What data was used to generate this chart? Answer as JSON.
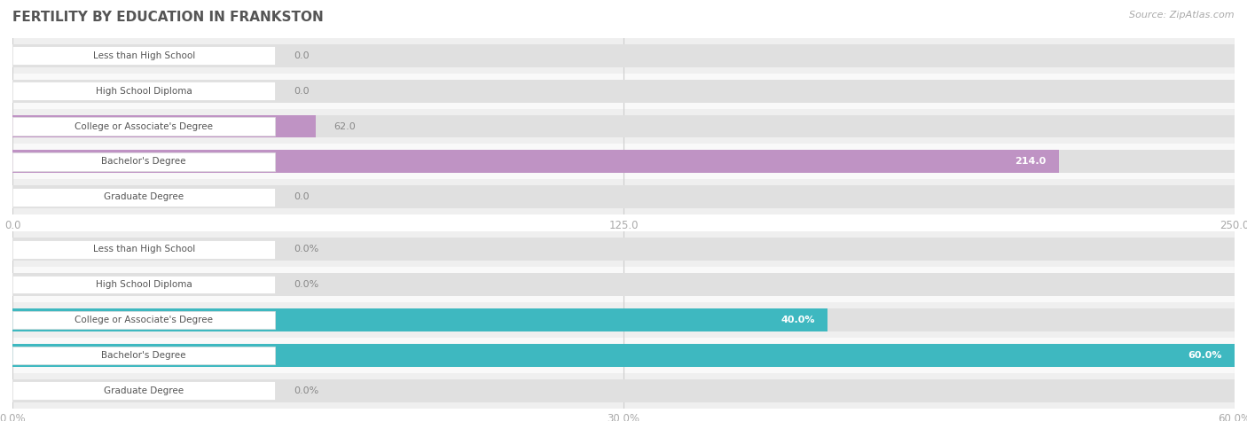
{
  "title": "FERTILITY BY EDUCATION IN FRANKSTON",
  "source": "Source: ZipAtlas.com",
  "top_chart": {
    "categories": [
      "Less than High School",
      "High School Diploma",
      "College or Associate's Degree",
      "Bachelor's Degree",
      "Graduate Degree"
    ],
    "values": [
      0.0,
      0.0,
      62.0,
      214.0,
      0.0
    ],
    "xlim": [
      0,
      250
    ],
    "xticks": [
      0.0,
      125.0,
      250.0
    ],
    "bar_color": "#bf93c4",
    "label_bg_color": "#ffffff",
    "bar_bg_color": "#e0e0e0",
    "value_label_color_inside": "#ffffff",
    "value_label_color_outside": "#888888"
  },
  "bottom_chart": {
    "categories": [
      "Less than High School",
      "High School Diploma",
      "College or Associate's Degree",
      "Bachelor's Degree",
      "Graduate Degree"
    ],
    "values": [
      0.0,
      0.0,
      40.0,
      60.0,
      0.0
    ],
    "xlim": [
      0,
      60
    ],
    "xticks": [
      0.0,
      30.0,
      60.0
    ],
    "xtick_labels": [
      "0.0%",
      "30.0%",
      "60.0%"
    ],
    "bar_color": "#3eb8c0",
    "label_bg_color": "#ffffff",
    "bar_bg_color": "#e0e0e0",
    "value_label_color_inside": "#ffffff",
    "value_label_color_outside": "#888888"
  },
  "row_bg_colors": [
    "#efefef",
    "#f9f9f9"
  ],
  "title_color": "#555555",
  "source_color": "#aaaaaa",
  "label_text_color": "#555555",
  "tick_color": "#aaaaaa",
  "grid_color": "#cccccc"
}
